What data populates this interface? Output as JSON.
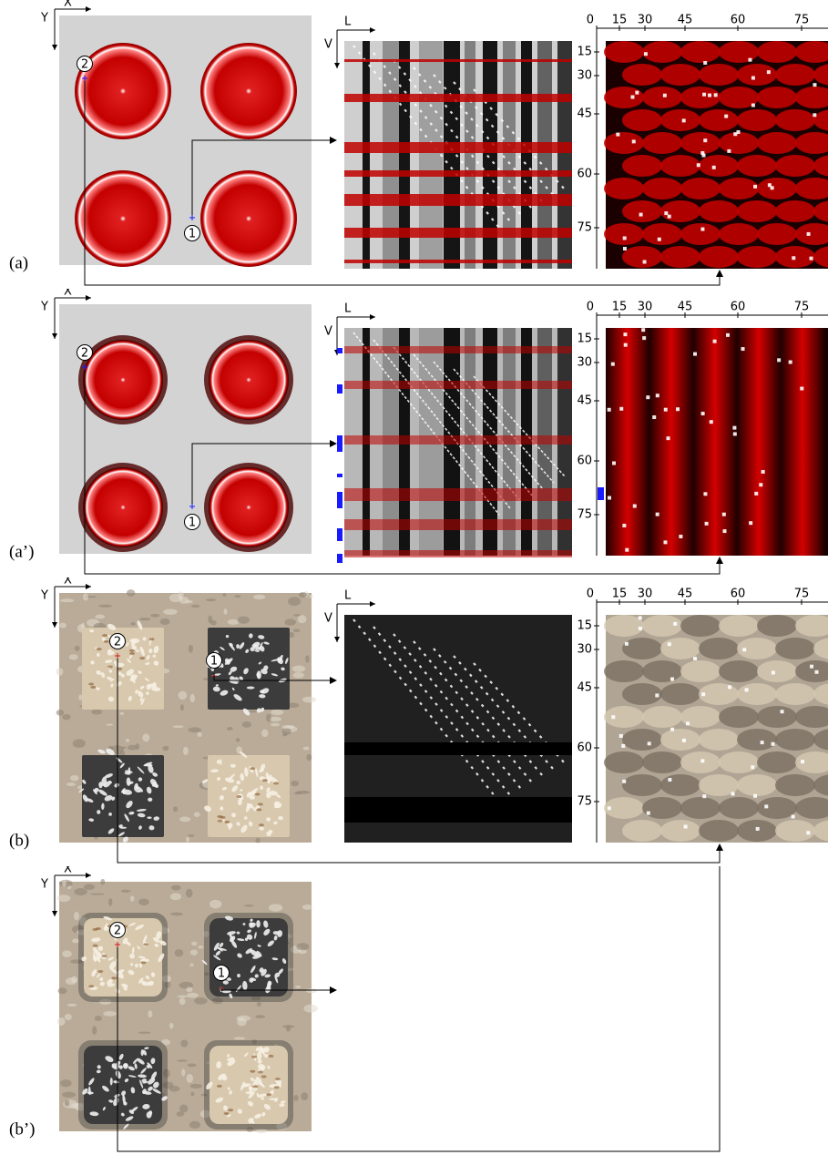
{
  "figure": {
    "axis_x": "X",
    "axis_y": "Y",
    "axis_l": "L",
    "axis_v": "V",
    "marker_1": "1",
    "marker_2": "2",
    "ticks_top": [
      "0",
      "15",
      "30",
      "45",
      "60",
      "75"
    ],
    "ticks_left": [
      "15",
      "30",
      "45",
      "60",
      "75"
    ]
  },
  "panels": [
    {
      "label": "(a)",
      "theme": "red",
      "shape": "disc",
      "variant": "original"
    },
    {
      "label": "(a’)",
      "theme": "red",
      "shape": "disc",
      "variant": "optimized"
    },
    {
      "label": "(b)",
      "theme": "stone",
      "shape": "square",
      "variant": "original"
    },
    {
      "label": "(b’)",
      "theme": "stone",
      "shape": "square",
      "variant": "optimized"
    }
  ],
  "colors": {
    "red": "#c00000",
    "dark_red": "#5a0000",
    "grey_bg": "#d3d3d3",
    "stone_bg": "#b9ab98",
    "stone_light": "#d8c8ae",
    "stone_dark": "#3c3c3c",
    "blue_marker": "#1a1aff",
    "arrow": "#000000"
  }
}
